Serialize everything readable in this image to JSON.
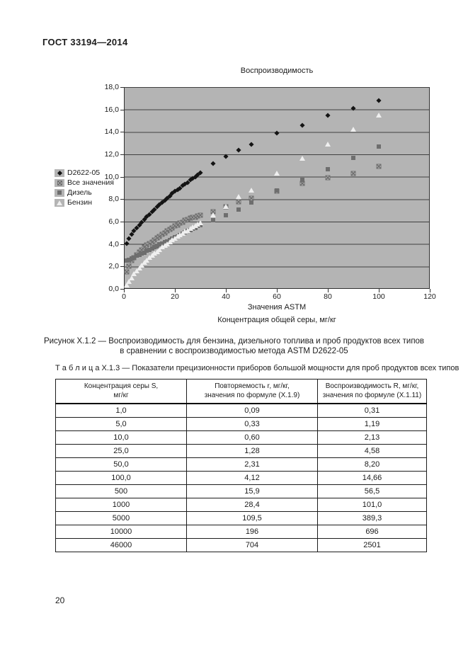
{
  "page": {
    "header": "ГОСТ 33194—2014",
    "page_number": "20"
  },
  "figure": {
    "caption_line1": "Рисунок Х.1.2 — Воспроизводимость для бензина, дизельного топлива и проб продуктов всех типов",
    "caption_line2": "в сравнении с воспроизводимостью метода ASTM D2622-05"
  },
  "chart_data": {
    "type": "scatter",
    "title": "Воспроизводимость",
    "xlabel": "Значения ASTM",
    "xlabel2": "Концентрация общей серы, мг/кг",
    "ylabel": "",
    "xlim": [
      0,
      120
    ],
    "ylim": [
      0,
      18
    ],
    "x_ticks": [
      "0",
      "20",
      "40",
      "60",
      "80",
      "100",
      "120"
    ],
    "y_ticks": [
      "18,0",
      "16,0",
      "14,0",
      "12,0",
      "10,0",
      "8,0",
      "6,0",
      "4,0",
      "2,0",
      "0,0"
    ],
    "grid": "horizontal",
    "legend_position": "left-outside",
    "plot_bg_color": "#b4b4b4",
    "series": [
      {
        "name": "D2622-05",
        "marker": "diamond",
        "color": "#141414",
        "points": [
          [
            1,
            4.05
          ],
          [
            2,
            4.5
          ],
          [
            3,
            4.85
          ],
          [
            4,
            5.15
          ],
          [
            5,
            5.45
          ],
          [
            6,
            5.7
          ],
          [
            7,
            5.95
          ],
          [
            8,
            6.2
          ],
          [
            9,
            6.45
          ],
          [
            10,
            6.65
          ],
          [
            11,
            6.9
          ],
          [
            12,
            7.1
          ],
          [
            13,
            7.3
          ],
          [
            14,
            7.5
          ],
          [
            15,
            7.7
          ],
          [
            16,
            7.9
          ],
          [
            17,
            8.1
          ],
          [
            18,
            8.3
          ],
          [
            19,
            8.5
          ],
          [
            20,
            8.7
          ],
          [
            21,
            8.85
          ],
          [
            22,
            9.0
          ],
          [
            23,
            9.2
          ],
          [
            24,
            9.35
          ],
          [
            25,
            9.5
          ],
          [
            26,
            9.7
          ],
          [
            27,
            9.85
          ],
          [
            28,
            10.0
          ],
          [
            29,
            10.2
          ],
          [
            30,
            10.35
          ],
          [
            35,
            11.2
          ],
          [
            40,
            11.8
          ],
          [
            45,
            12.4
          ],
          [
            50,
            12.9
          ],
          [
            60,
            13.9
          ],
          [
            70,
            14.6
          ],
          [
            80,
            15.5
          ],
          [
            90,
            16.1
          ],
          [
            100,
            16.8
          ]
        ]
      },
      {
        "name": "Все значения",
        "marker": "xsquare",
        "color": "#f7f7f7",
        "points": [
          [
            1,
            1.5
          ],
          [
            2,
            2.0
          ],
          [
            3,
            2.5
          ],
          [
            4,
            2.8
          ],
          [
            5,
            3.05
          ],
          [
            6,
            3.3
          ],
          [
            7,
            3.5
          ],
          [
            8,
            3.7
          ],
          [
            9,
            3.9
          ],
          [
            10,
            4.05
          ],
          [
            11,
            4.2
          ],
          [
            12,
            4.35
          ],
          [
            13,
            4.55
          ],
          [
            14,
            4.7
          ],
          [
            15,
            4.85
          ],
          [
            16,
            5.0
          ],
          [
            17,
            5.15
          ],
          [
            18,
            5.3
          ],
          [
            19,
            5.45
          ],
          [
            20,
            5.6
          ],
          [
            21,
            5.7
          ],
          [
            22,
            5.85
          ],
          [
            23,
            5.95
          ],
          [
            24,
            6.1
          ],
          [
            25,
            6.2
          ],
          [
            26,
            6.3
          ],
          [
            27,
            6.35
          ],
          [
            28,
            6.4
          ],
          [
            29,
            6.5
          ],
          [
            30,
            6.55
          ],
          [
            35,
            6.9
          ],
          [
            40,
            7.3
          ],
          [
            45,
            7.8
          ],
          [
            50,
            8.1
          ],
          [
            60,
            8.7
          ],
          [
            70,
            9.4
          ],
          [
            80,
            9.9
          ],
          [
            90,
            10.3
          ],
          [
            100,
            10.9
          ]
        ]
      },
      {
        "name": "Дизель",
        "marker": "square",
        "color": "#6e6e6e",
        "points": [
          [
            1,
            2.5
          ],
          [
            2,
            2.6
          ],
          [
            3,
            2.7
          ],
          [
            4,
            2.8
          ],
          [
            5,
            2.95
          ],
          [
            6,
            3.05
          ],
          [
            7,
            3.15
          ],
          [
            8,
            3.25
          ],
          [
            9,
            3.4
          ],
          [
            10,
            3.5
          ],
          [
            11,
            3.6
          ],
          [
            12,
            3.7
          ],
          [
            13,
            3.8
          ],
          [
            14,
            3.95
          ],
          [
            15,
            4.05
          ],
          [
            16,
            4.15
          ],
          [
            17,
            4.25
          ],
          [
            18,
            4.35
          ],
          [
            19,
            4.5
          ],
          [
            20,
            4.6
          ],
          [
            21,
            4.7
          ],
          [
            22,
            4.8
          ],
          [
            23,
            4.9
          ],
          [
            24,
            5.05
          ],
          [
            25,
            5.15
          ],
          [
            26,
            5.25
          ],
          [
            27,
            5.35
          ],
          [
            28,
            5.45
          ],
          [
            29,
            5.6
          ],
          [
            30,
            5.7
          ],
          [
            35,
            6.1
          ],
          [
            40,
            6.6
          ],
          [
            45,
            7.1
          ],
          [
            50,
            7.7
          ],
          [
            60,
            8.8
          ],
          [
            70,
            9.7
          ],
          [
            80,
            10.7
          ],
          [
            90,
            11.7
          ],
          [
            100,
            12.7
          ]
        ]
      },
      {
        "name": "Бензин",
        "marker": "triangle",
        "color": "#efefef",
        "points": [
          [
            1,
            0.3
          ],
          [
            2,
            0.65
          ],
          [
            3,
            0.95
          ],
          [
            4,
            1.3
          ],
          [
            5,
            1.6
          ],
          [
            6,
            1.85
          ],
          [
            7,
            2.1
          ],
          [
            8,
            2.35
          ],
          [
            9,
            2.55
          ],
          [
            10,
            2.75
          ],
          [
            11,
            2.95
          ],
          [
            12,
            3.15
          ],
          [
            13,
            3.3
          ],
          [
            14,
            3.5
          ],
          [
            15,
            3.7
          ],
          [
            16,
            3.85
          ],
          [
            17,
            4.0
          ],
          [
            18,
            4.2
          ],
          [
            19,
            4.35
          ],
          [
            20,
            4.5
          ],
          [
            21,
            4.65
          ],
          [
            22,
            4.8
          ],
          [
            23,
            4.95
          ],
          [
            24,
            5.1
          ],
          [
            25,
            5.2
          ],
          [
            26,
            5.35
          ],
          [
            27,
            5.5
          ],
          [
            28,
            5.6
          ],
          [
            29,
            5.75
          ],
          [
            30,
            5.85
          ],
          [
            35,
            6.6
          ],
          [
            40,
            7.3
          ],
          [
            45,
            8.2
          ],
          [
            50,
            8.8
          ],
          [
            60,
            10.3
          ],
          [
            70,
            11.6
          ],
          [
            80,
            12.9
          ],
          [
            90,
            14.2
          ],
          [
            100,
            15.5
          ]
        ]
      }
    ]
  },
  "table": {
    "label": "Т а б л и ц а   Х.1.3 — Показатели прецизионности приборов большой мощности для проб продуктов всех типов",
    "col_headers": [
      [
        "Концентрация серы S,",
        "мг/кг"
      ],
      [
        "Повторяемость r, мг/кг,",
        "значения по формуле (Х.1.9)"
      ],
      [
        "Воспроизводимость R, мг/кг,",
        "значения по формуле (Х.1.11)"
      ]
    ],
    "rows": [
      [
        "1,0",
        "0,09",
        "0,31"
      ],
      [
        "5,0",
        "0,33",
        "1,19"
      ],
      [
        "10,0",
        "0,60",
        "2,13"
      ],
      [
        "25,0",
        "1,28",
        "4,58"
      ],
      [
        "50,0",
        "2,31",
        "8,20"
      ],
      [
        "100,0",
        "4,12",
        "14,66"
      ],
      [
        "500",
        "15,9",
        "56,5"
      ],
      [
        "1000",
        "28,4",
        "101,0"
      ],
      [
        "5000",
        "109,5",
        "389,3"
      ],
      [
        "10000",
        "196",
        "696"
      ],
      [
        "46000",
        "704",
        "2501"
      ]
    ]
  }
}
